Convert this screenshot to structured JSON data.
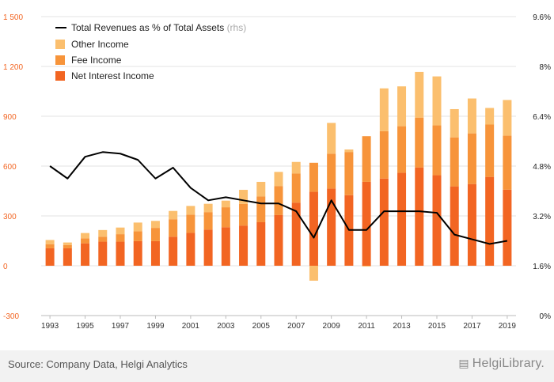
{
  "chart_data": {
    "type": "bar",
    "stacked": true,
    "x": [
      "1993",
      "1994",
      "1995",
      "1996",
      "1997",
      "1998",
      "1999",
      "2000",
      "2001",
      "2002",
      "2003",
      "2004",
      "2005",
      "2006",
      "2007",
      "2008",
      "2009",
      "2010",
      "2011",
      "2012",
      "2013",
      "2014",
      "2015",
      "2016",
      "2017",
      "2018",
      "2019"
    ],
    "x_tick_labels": [
      "1993",
      "1995",
      "1997",
      "1999",
      "2001",
      "2003",
      "2005",
      "2007",
      "2009",
      "2011",
      "2013",
      "2015",
      "2017",
      "2019"
    ],
    "y_left": {
      "ylim": [
        -300,
        1500
      ],
      "ticks": [
        -300,
        0,
        300,
        600,
        900,
        1200,
        1500
      ],
      "tick_labels": [
        "-300",
        "0",
        "300",
        "600",
        "900",
        "1 200",
        "1 500"
      ]
    },
    "y_right": {
      "ylim": [
        0,
        9.6
      ],
      "ticks": [
        0,
        1.6,
        3.2,
        4.8,
        6.4,
        8,
        9.6
      ],
      "tick_labels": [
        "0%",
        "1.6%",
        "3.2%",
        "4.8%",
        "6.4%",
        "8%",
        "9.6%"
      ]
    },
    "series": [
      {
        "name": "Net Interest Income",
        "color": "#f26522",
        "type": "bar",
        "values": [
          105,
          105,
          135,
          145,
          145,
          148,
          148,
          175,
          198,
          218,
          232,
          242,
          262,
          305,
          380,
          445,
          465,
          425,
          505,
          525,
          560,
          592,
          545,
          478,
          492,
          535,
          458
        ]
      },
      {
        "name": "Fee Income",
        "color": "#f7943a",
        "type": "bar",
        "values": [
          25,
          20,
          30,
          30,
          45,
          60,
          80,
          105,
          110,
          105,
          120,
          130,
          155,
          175,
          175,
          175,
          210,
          260,
          275,
          285,
          280,
          300,
          300,
          295,
          305,
          315,
          325
        ]
      },
      {
        "name": "Other Income",
        "color": "#fbbf6e",
        "type": "bar",
        "values": [
          25,
          15,
          32,
          40,
          40,
          52,
          42,
          50,
          52,
          50,
          40,
          85,
          88,
          85,
          70,
          -90,
          185,
          15,
          -5,
          258,
          240,
          275,
          295,
          170,
          210,
          100,
          215
        ]
      },
      {
        "name": "Total Revenues as % of Total Assets",
        "axis_note": "(rhs)",
        "color": "#000000",
        "type": "line",
        "axis": "right",
        "values": [
          4.8,
          4.4,
          5.1,
          5.25,
          5.2,
          5.0,
          4.4,
          4.75,
          4.1,
          3.7,
          3.8,
          3.7,
          3.6,
          3.6,
          3.35,
          2.5,
          3.7,
          2.75,
          2.75,
          3.35,
          3.35,
          3.35,
          3.3,
          2.6,
          2.45,
          2.3,
          2.4
        ]
      }
    ],
    "legend_position": "top-left",
    "grid": "horizontal"
  },
  "footer": {
    "source": "Source: Company Data, Helgi Analytics",
    "logo_text": "HelgiLibrary."
  }
}
